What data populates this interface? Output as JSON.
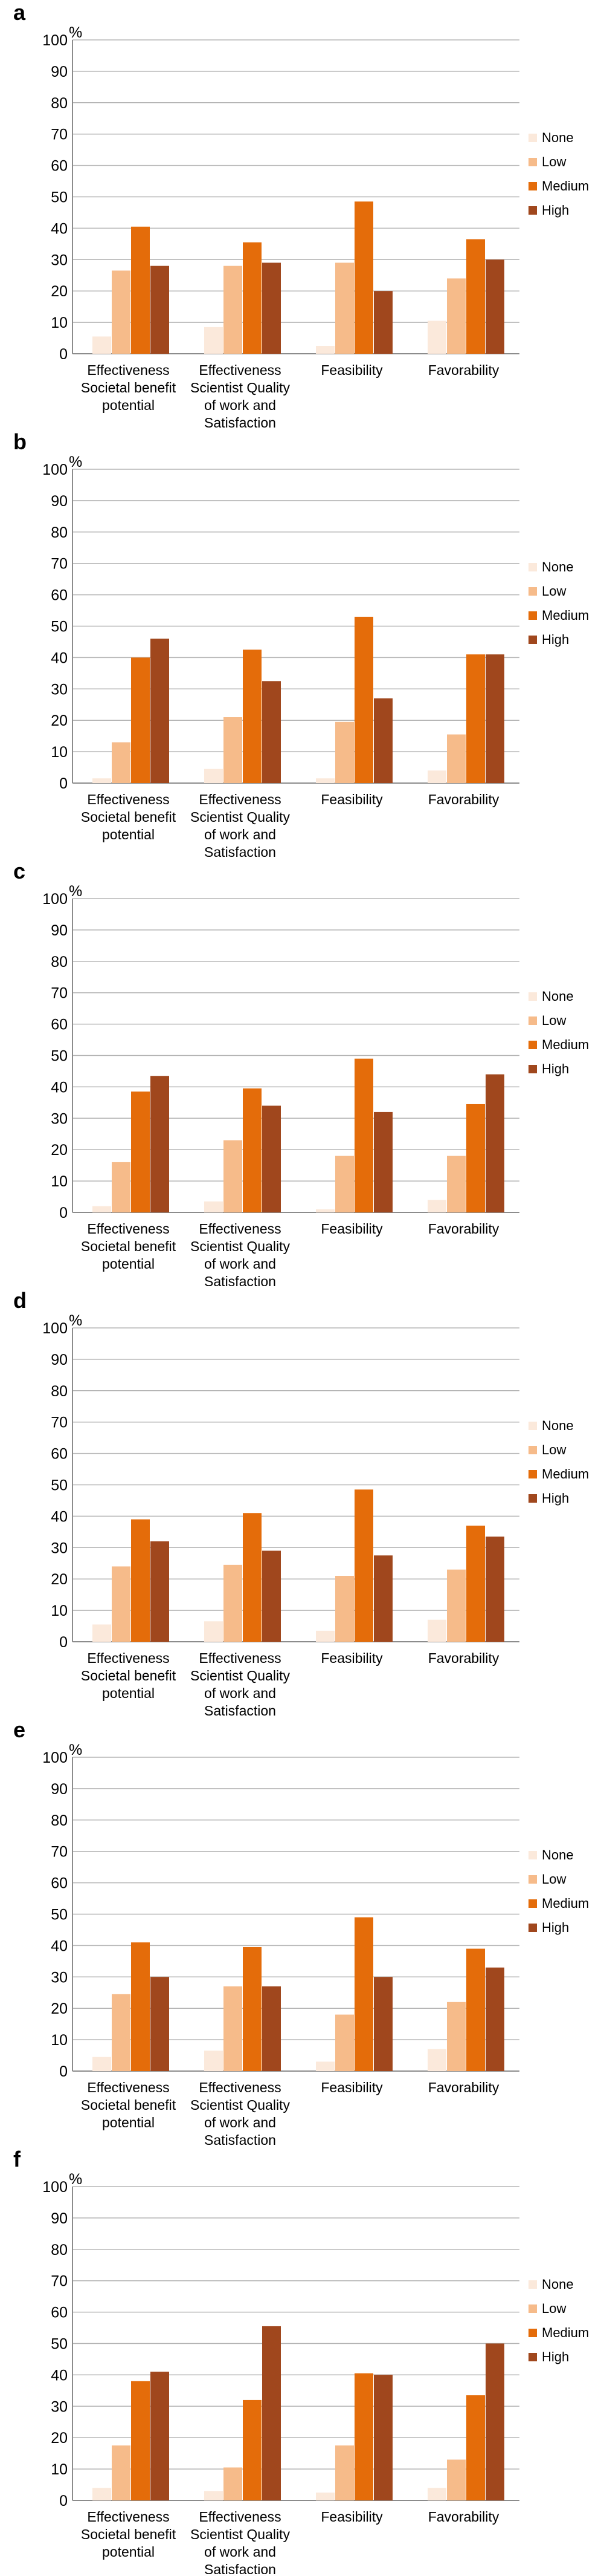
{
  "y_unit": "%",
  "colors": {
    "None": "#fbe9db",
    "Low": "#f6bb8a",
    "Medium": "#e46c0a",
    "High": "#a0471d"
  },
  "chart_data": [
    {
      "panel": "a",
      "type": "bar",
      "ylim": [
        0,
        100
      ],
      "yticks": [
        0,
        10,
        20,
        30,
        40,
        50,
        60,
        70,
        80,
        90,
        100
      ],
      "categories": [
        [
          "Effectiveness",
          "Societal benefit",
          "potential"
        ],
        [
          "Effectiveness",
          "Scientist Quality",
          "of work and",
          "Satisfaction"
        ],
        [
          "Feasibility"
        ],
        [
          "Favorability"
        ]
      ],
      "legend": [
        "None",
        "Low",
        "Medium",
        "High"
      ],
      "legend_position": "right",
      "series": [
        {
          "name": "None",
          "values": [
            5.5,
            8.5,
            2.5,
            10.5
          ]
        },
        {
          "name": "Low",
          "values": [
            26.5,
            28,
            29,
            24
          ]
        },
        {
          "name": "Medium",
          "values": [
            40.5,
            35.5,
            48.5,
            36.5
          ]
        },
        {
          "name": "High",
          "values": [
            28,
            29,
            20,
            30
          ]
        }
      ]
    },
    {
      "panel": "b",
      "type": "bar",
      "ylim": [
        0,
        100
      ],
      "yticks": [
        0,
        10,
        20,
        30,
        40,
        50,
        60,
        70,
        80,
        90,
        100
      ],
      "categories": [
        [
          "Effectiveness",
          "Societal benefit",
          "potential"
        ],
        [
          "Effectiveness",
          "Scientist Quality",
          "of work and",
          "Satisfaction"
        ],
        [
          "Feasibility"
        ],
        [
          "Favorability"
        ]
      ],
      "legend": [
        "None",
        "Low",
        "Medium",
        "High"
      ],
      "legend_position": "right",
      "series": [
        {
          "name": "None",
          "values": [
            1.5,
            4.5,
            1.5,
            4
          ]
        },
        {
          "name": "Low",
          "values": [
            13,
            21,
            19.5,
            15.5
          ]
        },
        {
          "name": "Medium",
          "values": [
            40,
            42.5,
            53,
            41
          ]
        },
        {
          "name": "High",
          "values": [
            46,
            32.5,
            27,
            41
          ]
        }
      ]
    },
    {
      "panel": "c",
      "type": "bar",
      "ylim": [
        0,
        100
      ],
      "yticks": [
        0,
        10,
        20,
        30,
        40,
        50,
        60,
        70,
        80,
        90,
        100
      ],
      "categories": [
        [
          "Effectiveness",
          "Societal benefit",
          "potential"
        ],
        [
          "Effectiveness",
          "Scientist Quality",
          "of work and",
          "Satisfaction"
        ],
        [
          "Feasibility"
        ],
        [
          "Favorability"
        ]
      ],
      "legend": [
        "None",
        "Low",
        "Medium",
        "High"
      ],
      "legend_position": "right",
      "series": [
        {
          "name": "None",
          "values": [
            2,
            3.5,
            1,
            4
          ]
        },
        {
          "name": "Low",
          "values": [
            16,
            23,
            18,
            18
          ]
        },
        {
          "name": "Medium",
          "values": [
            38.5,
            39.5,
            49,
            34.5
          ]
        },
        {
          "name": "High",
          "values": [
            43.5,
            34,
            32,
            44
          ]
        }
      ]
    },
    {
      "panel": "d",
      "type": "bar",
      "ylim": [
        0,
        100
      ],
      "yticks": [
        0,
        10,
        20,
        30,
        40,
        50,
        60,
        70,
        80,
        90,
        100
      ],
      "categories": [
        [
          "Effectiveness",
          "Societal benefit",
          "potential"
        ],
        [
          "Effectiveness",
          "Scientist Quality",
          "of work and",
          "Satisfaction"
        ],
        [
          "Feasibility"
        ],
        [
          "Favorability"
        ]
      ],
      "legend": [
        "None",
        "Low",
        "Medium",
        "High"
      ],
      "legend_position": "right",
      "series": [
        {
          "name": "None",
          "values": [
            5.5,
            6.5,
            3.5,
            7
          ]
        },
        {
          "name": "Low",
          "values": [
            24,
            24.5,
            21,
            23
          ]
        },
        {
          "name": "Medium",
          "values": [
            39,
            41,
            48.5,
            37
          ]
        },
        {
          "name": "High",
          "values": [
            32,
            29,
            27.5,
            33.5
          ]
        }
      ]
    },
    {
      "panel": "e",
      "type": "bar",
      "ylim": [
        0,
        100
      ],
      "yticks": [
        0,
        10,
        20,
        30,
        40,
        50,
        60,
        70,
        80,
        90,
        100
      ],
      "categories": [
        [
          "Effectiveness",
          "Societal benefit",
          "potential"
        ],
        [
          "Effectiveness",
          "Scientist Quality",
          "of work and",
          "Satisfaction"
        ],
        [
          "Feasibility"
        ],
        [
          "Favorability"
        ]
      ],
      "legend": [
        "None",
        "Low",
        "Medium",
        "High"
      ],
      "legend_position": "right",
      "series": [
        {
          "name": "None",
          "values": [
            4.5,
            6.5,
            3,
            7
          ]
        },
        {
          "name": "Low",
          "values": [
            24.5,
            27,
            18,
            22
          ]
        },
        {
          "name": "Medium",
          "values": [
            41,
            39.5,
            49,
            39
          ]
        },
        {
          "name": "High",
          "values": [
            30,
            27,
            30,
            33
          ]
        }
      ]
    },
    {
      "panel": "f",
      "type": "bar",
      "ylim": [
        0,
        100
      ],
      "yticks": [
        0,
        10,
        20,
        30,
        40,
        50,
        60,
        70,
        80,
        90,
        100
      ],
      "categories": [
        [
          "Effectiveness",
          "Societal benefit",
          "potential"
        ],
        [
          "Effectiveness",
          "Scientist Quality",
          "of work and",
          "Satisfaction"
        ],
        [
          "Feasibility"
        ],
        [
          "Favorability"
        ]
      ],
      "legend": [
        "None",
        "Low",
        "Medium",
        "High"
      ],
      "legend_position": "right",
      "series": [
        {
          "name": "None",
          "values": [
            4,
            3,
            2.5,
            4
          ]
        },
        {
          "name": "Low",
          "values": [
            17.5,
            10.5,
            17.5,
            13
          ]
        },
        {
          "name": "Medium",
          "values": [
            38,
            32,
            40.5,
            33.5
          ]
        },
        {
          "name": "High",
          "values": [
            41,
            55.5,
            40,
            50
          ]
        }
      ]
    }
  ]
}
